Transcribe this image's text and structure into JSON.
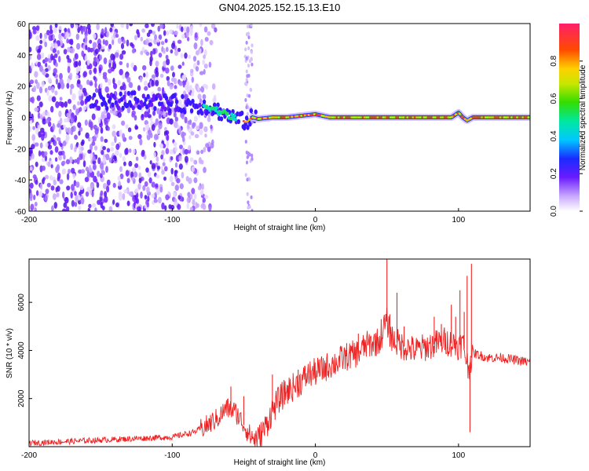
{
  "title": "GN04.2025.152.15.13.E10",
  "chart_data": [
    {
      "type": "heatmap",
      "xlabel": "Height of straight line (km)",
      "ylabel": "Frequency (Hz)",
      "xlim": [
        -200,
        150
      ],
      "ylim": [
        -60,
        60
      ],
      "xticks": [
        -200,
        -100,
        0,
        100
      ],
      "yticks": [
        60,
        40,
        20,
        0,
        -20,
        -40,
        -60
      ],
      "colorbar": {
        "label": "Normalized spectral amplitude",
        "range": [
          0.0,
          1.0
        ],
        "ticks": [
          "0.0",
          "0.2",
          "0.4",
          "0.6",
          "0.8"
        ]
      },
      "signal_track": {
        "x": [
          -150,
          -120,
          -100,
          -85,
          -75,
          -65,
          -55,
          -48,
          -44,
          -40,
          -30,
          -20,
          0,
          10,
          50,
          95,
          100,
          103,
          106,
          110,
          150
        ],
        "y": [
          10,
          11,
          9,
          8,
          7,
          3,
          -1,
          -3,
          0,
          -1,
          0,
          0,
          2,
          0,
          0,
          0,
          3,
          0,
          -2,
          0,
          0
        ],
        "peak_region_x": [
          -50,
          150
        ]
      }
    },
    {
      "type": "line",
      "xlabel": "Height of straight line (km)",
      "ylabel": "SNR (10 * v/v)",
      "xlim": [
        -200,
        150
      ],
      "ylim": [
        0,
        7800
      ],
      "xticks": [
        -200,
        -100,
        0,
        100
      ],
      "yticks": [
        2000,
        4000,
        6000
      ],
      "color": "#ee2222",
      "x": [
        -200,
        -180,
        -160,
        -140,
        -120,
        -100,
        -85,
        -75,
        -68,
        -62,
        -57,
        -54,
        -50,
        -45,
        -40,
        -35,
        -30,
        -25,
        -20,
        -15,
        -10,
        -5,
        0,
        5,
        10,
        15,
        20,
        25,
        30,
        35,
        40,
        45,
        48,
        50,
        52,
        55,
        58,
        60,
        65,
        70,
        75,
        80,
        85,
        90,
        95,
        100,
        103,
        105,
        107,
        108,
        110,
        115,
        120,
        130,
        140,
        150
      ],
      "y": [
        150,
        200,
        250,
        300,
        350,
        400,
        600,
        900,
        1200,
        1600,
        1500,
        1300,
        900,
        400,
        300,
        800,
        1500,
        2000,
        2300,
        2500,
        2700,
        3000,
        3100,
        3200,
        3400,
        3500,
        3700,
        3800,
        3900,
        4200,
        4300,
        4400,
        5000,
        5200,
        4700,
        4400,
        4300,
        4200,
        4100,
        4000,
        4100,
        4200,
        4300,
        4400,
        4300,
        4200,
        4300,
        3800,
        3200,
        3500,
        3900,
        3800,
        3700,
        3700,
        3600,
        3500
      ],
      "spikes_x": [
        -59,
        -50,
        -30,
        -12,
        12,
        30,
        46,
        50,
        52,
        57,
        62,
        83,
        88,
        95,
        98,
        101,
        104,
        106,
        108,
        109
      ],
      "spikes_y": [
        2500,
        2100,
        3000,
        3200,
        3600,
        4700,
        5300,
        7800,
        5500,
        6400,
        5000,
        5400,
        5100,
        5900,
        5400,
        6500,
        5600,
        7100,
        600,
        7600
      ]
    }
  ]
}
